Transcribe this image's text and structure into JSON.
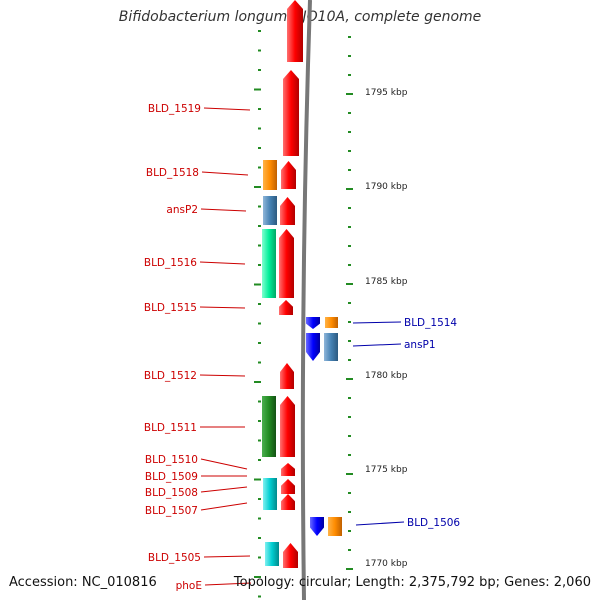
{
  "title": "Bifidobacterium longum DJO10A, complete genome",
  "footer": {
    "accession": "Accession: NC_010816",
    "topology": "Topology: circular; Length: 2,375,792 bp; Genes: 2,060"
  },
  "colors": {
    "red": "#ff0000",
    "orange": "#ff8c00",
    "steelblue": "#4682b4",
    "springgreen": "#00ee99",
    "darkgreen": "#228b22",
    "cyan": "#00ced1",
    "blue": "#0000ff",
    "tick": "#228b22",
    "leftLabel": "#cc0000",
    "rightLabel": "#0000aa"
  },
  "scale": [
    "1795 kbp",
    "1790 kbp",
    "1785 kbp",
    "1780 kbp",
    "1775 kbp",
    "1770 kbp"
  ],
  "labels_left": [
    "BLD_1519",
    "BLD_1518",
    "ansP2",
    "BLD_1516",
    "BLD_1515",
    "BLD_1512",
    "BLD_1511",
    "BLD_1510",
    "BLD_1509",
    "BLD_1508",
    "BLD_1507",
    "BLD_1505",
    "phoE"
  ],
  "labels_right": [
    "BLD_1514",
    "ansP1",
    "BLD_1506"
  ],
  "genes": [
    {
      "strand": "minus-outer",
      "color": "red"
    },
    {
      "strand": "minus-outer",
      "color": "red"
    },
    {
      "strand": "minus-inner",
      "color": "orange"
    },
    {
      "strand": "minus-outer",
      "color": "red"
    },
    {
      "strand": "minus-inner",
      "color": "steelblue"
    },
    {
      "strand": "minus-outer",
      "color": "red"
    },
    {
      "strand": "minus-inner",
      "color": "springgreen"
    },
    {
      "strand": "minus-outer",
      "color": "red"
    },
    {
      "strand": "minus-outer",
      "color": "red"
    },
    {
      "strand": "plus-inner",
      "color": "blue"
    },
    {
      "strand": "plus-outer",
      "color": "orange"
    },
    {
      "strand": "plus-inner",
      "color": "blue"
    },
    {
      "strand": "plus-outer",
      "color": "steelblue"
    },
    {
      "strand": "minus-outer",
      "color": "red"
    },
    {
      "strand": "minus-inner",
      "color": "darkgreen"
    },
    {
      "strand": "minus-outer",
      "color": "red"
    },
    {
      "strand": "minus-outer",
      "color": "red"
    },
    {
      "strand": "minus-outer",
      "color": "red"
    },
    {
      "strand": "minus-outer",
      "color": "red"
    },
    {
      "strand": "minus-inner",
      "color": "cyan"
    },
    {
      "strand": "plus-inner",
      "color": "blue"
    },
    {
      "strand": "plus-outer",
      "color": "orange"
    },
    {
      "strand": "minus-inner",
      "color": "cyan"
    },
    {
      "strand": "minus-outer",
      "color": "red"
    }
  ]
}
